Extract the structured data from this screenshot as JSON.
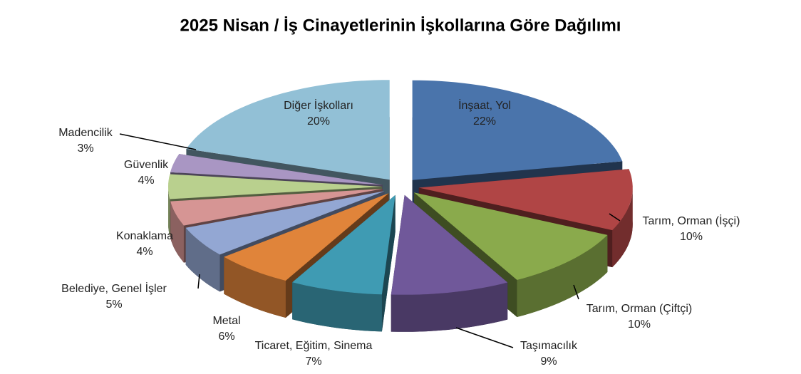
{
  "chart_data": {
    "type": "pie",
    "title": "2025 Nisan / İş Cinayetlerinin İşkollarına Göre Dağılımı",
    "categories": [
      "İnşaat, Yol",
      "Tarım, Orman (İşçi)",
      "Tarım, Orman (Çiftçi)",
      "Taşımacılık",
      "Ticaret, Eğitim, Sinema",
      "Metal",
      "Belediye, Genel İşler",
      "Konaklama",
      "Güvenlik",
      "Madencilik",
      "Diğer İşkolları"
    ],
    "values": [
      22,
      10,
      10,
      9,
      7,
      6,
      5,
      4,
      4,
      3,
      20
    ],
    "value_labels": [
      "22%",
      "10%",
      "10%",
      "9%",
      "7%",
      "6%",
      "5%",
      "4%",
      "4%",
      "3%",
      "20%"
    ],
    "colors": [
      "#4a74ab",
      "#b04545",
      "#8aaa4c",
      "#70589a",
      "#3f9bb3",
      "#e0843a",
      "#93a7d3",
      "#d69594",
      "#b9d08e",
      "#a996c3",
      "#92c0d6"
    ]
  }
}
